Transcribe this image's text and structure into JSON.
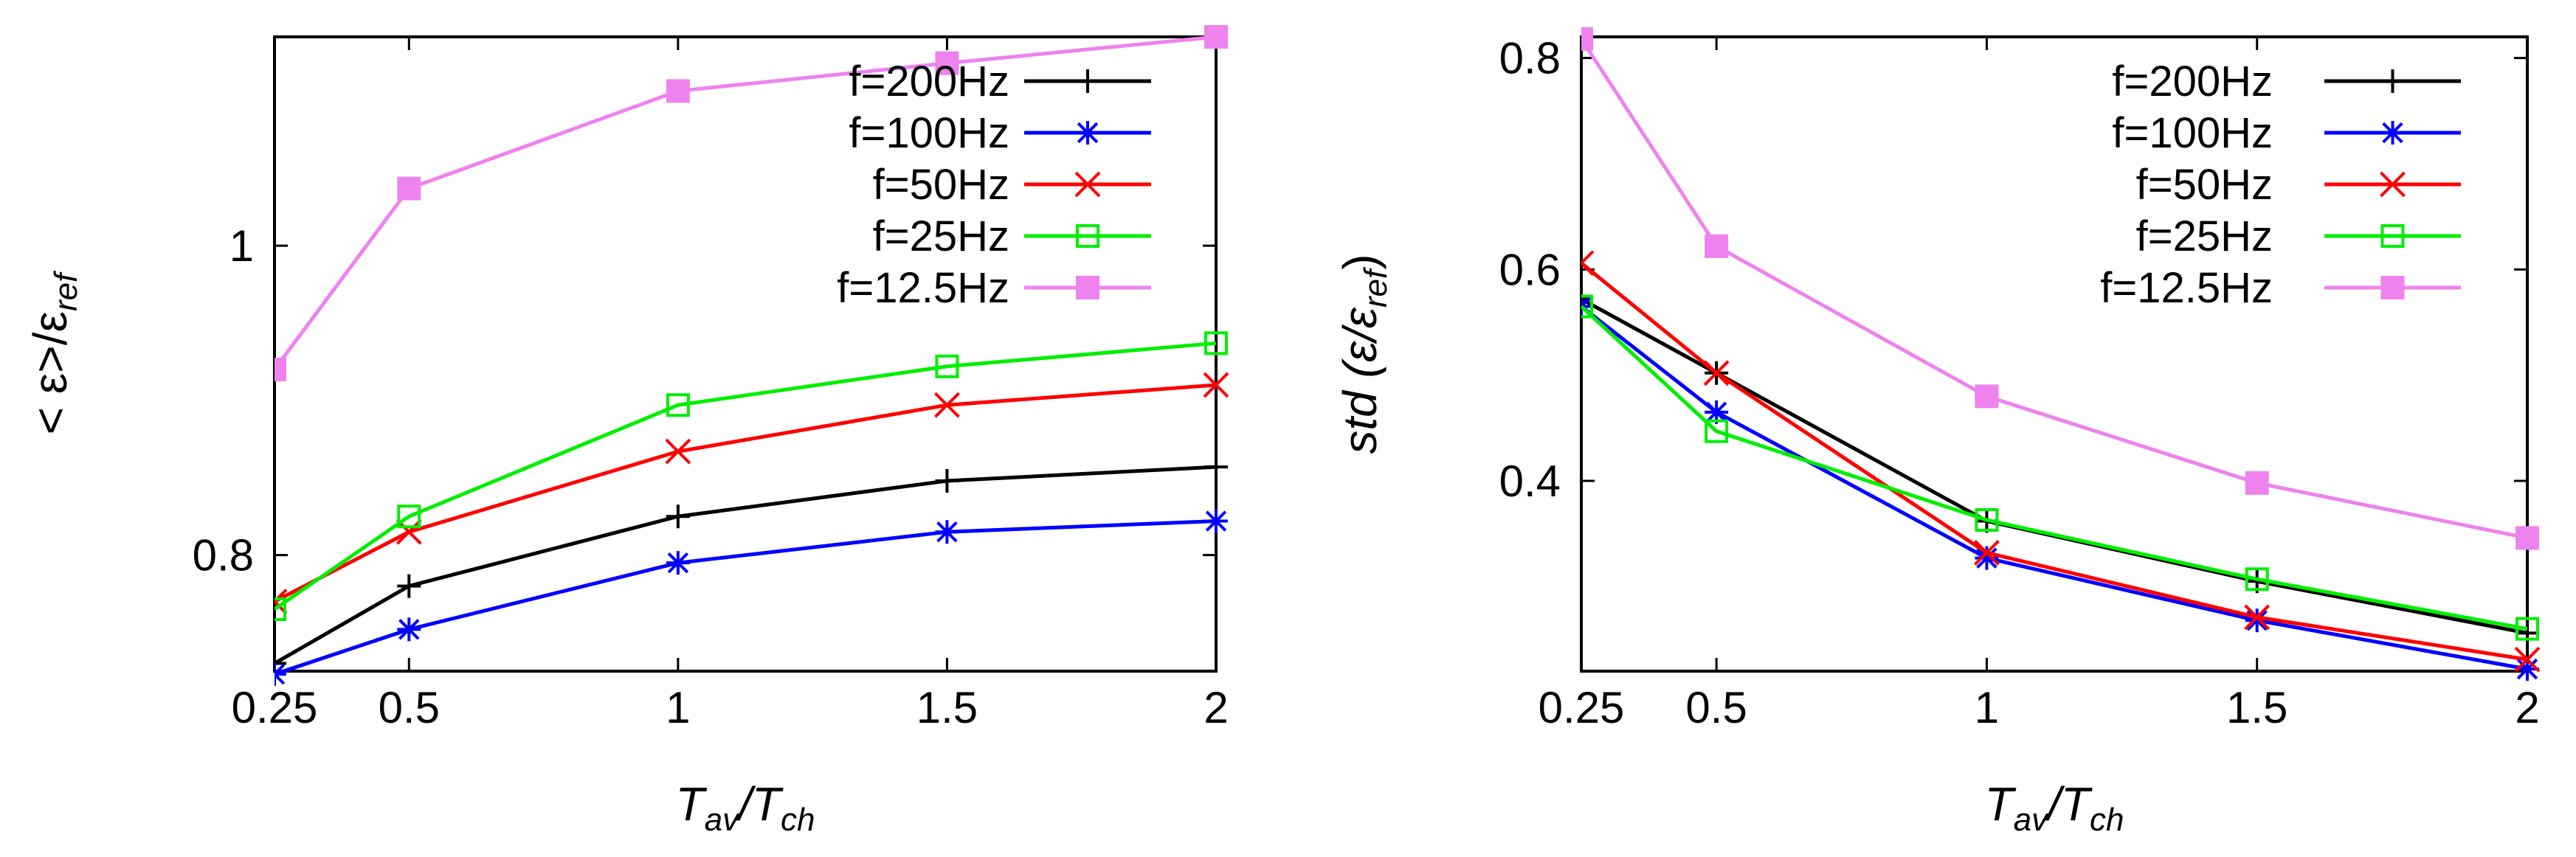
{
  "chart_data": [
    {
      "type": "line",
      "title": "",
      "x": [
        0.25,
        0.5,
        1,
        1.5,
        2
      ],
      "xticks": [
        "0.25",
        "0.5",
        "1",
        "1.5",
        "2"
      ],
      "xlim": [
        0.25,
        2
      ],
      "ylim": [
        0.725,
        1.135
      ],
      "yticks": [
        {
          "value": 0.8,
          "label": "0.8"
        },
        {
          "value": 1.0,
          "label": "1"
        }
      ],
      "xlabel": {
        "main": "T",
        "sub1": "av",
        "slash": "/T",
        "sub2": "ch"
      },
      "ylabel": {
        "pre": "< ε>/ε",
        "sub": "ref"
      },
      "legend_position": "top-right",
      "series": [
        {
          "name": "f=200Hz",
          "color": "#000000",
          "marker": "plus",
          "values": [
            0.73,
            0.78,
            0.825,
            0.848,
            0.857
          ]
        },
        {
          "name": "f=100Hz",
          "color": "#0000ff",
          "marker": "asterisk",
          "values": [
            0.723,
            0.752,
            0.795,
            0.815,
            0.822
          ]
        },
        {
          "name": "f=50Hz",
          "color": "#ff0000",
          "marker": "cross",
          "values": [
            0.77,
            0.815,
            0.867,
            0.897,
            0.91
          ]
        },
        {
          "name": "f=25Hz",
          "color": "#00ee00",
          "marker": "open-square",
          "values": [
            0.765,
            0.825,
            0.897,
            0.922,
            0.937
          ]
        },
        {
          "name": "f=12.5Hz",
          "color": "#ee82ee",
          "marker": "filled-square",
          "values": [
            0.92,
            1.037,
            1.1,
            1.118,
            1.135
          ]
        }
      ]
    },
    {
      "type": "line",
      "title": "",
      "x": [
        0.25,
        0.5,
        1,
        1.5,
        2
      ],
      "xticks": [
        "0.25",
        "0.5",
        "1",
        "1.5",
        "2"
      ],
      "xlim": [
        0.25,
        2
      ],
      "ylim": [
        0.22,
        0.82
      ],
      "yticks": [
        {
          "value": 0.4,
          "label": "0.4"
        },
        {
          "value": 0.6,
          "label": "0.6"
        },
        {
          "value": 0.8,
          "label": "0.8"
        }
      ],
      "xlabel": {
        "main": "T",
        "sub1": "av",
        "slash": "/T",
        "sub2": "ch"
      },
      "ylabel": {
        "pre": "std (ε/ε",
        "sub": "ref",
        "post": ")"
      },
      "legend_position": "top-right",
      "series": [
        {
          "name": "f=200Hz",
          "color": "#000000",
          "marker": "plus",
          "values": [
            0.572,
            0.502,
            0.362,
            0.305,
            0.256
          ]
        },
        {
          "name": "f=100Hz",
          "color": "#0000ff",
          "marker": "asterisk",
          "values": [
            0.565,
            0.465,
            0.327,
            0.268,
            0.222
          ]
        },
        {
          "name": "f=50Hz",
          "color": "#ff0000",
          "marker": "cross",
          "values": [
            0.606,
            0.502,
            0.332,
            0.271,
            0.231
          ]
        },
        {
          "name": "f=25Hz",
          "color": "#00ee00",
          "marker": "open-square",
          "values": [
            0.565,
            0.447,
            0.363,
            0.307,
            0.26
          ]
        },
        {
          "name": "f=12.5Hz",
          "color": "#ee82ee",
          "marker": "filled-square",
          "values": [
            0.818,
            0.622,
            0.48,
            0.398,
            0.346
          ]
        }
      ]
    }
  ]
}
